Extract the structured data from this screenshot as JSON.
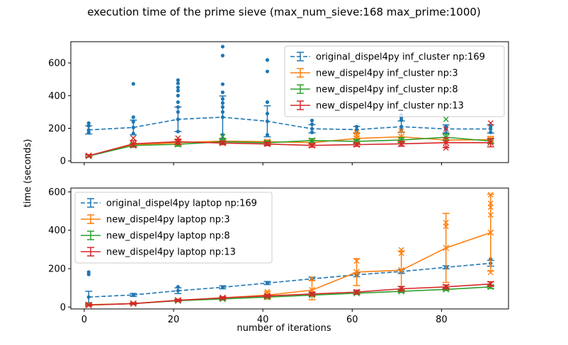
{
  "chart_data": {
    "title": "execution time of the prime sieve (max_num_sieve:168 max_prime:1000)",
    "xlabel": "number of iterations",
    "ylabel": "time (seconds)",
    "xlim": [
      -3,
      95
    ],
    "x_ticks": [
      0,
      20,
      40,
      60,
      80
    ],
    "panels": [
      {
        "type": "line",
        "ylim": [
          -10,
          730
        ],
        "y_ticks": [
          0,
          200,
          400,
          600
        ],
        "legend_placement": "top-right",
        "x": [
          1,
          11,
          21,
          31,
          41,
          51,
          61,
          71,
          81,
          91
        ],
        "series": [
          {
            "name": "original_dispel4py inf_cluster np:169",
            "color": "#1f77b4",
            "dashed": true,
            "marker": "dot",
            "values": [
              190,
              205,
              255,
              268,
              243,
              197,
              192,
              210,
              196,
              196
            ],
            "err": [
              25,
              45,
              75,
              130,
              95,
              25,
              20,
              35,
              25,
              25
            ],
            "outliers": [
              [
                1,
                175
              ],
              [
                1,
                215
              ],
              [
                1,
                232
              ],
              [
                11,
                168
              ],
              [
                11,
                240
              ],
              [
                11,
                268
              ],
              [
                11,
                472
              ],
              [
                21,
                180
              ],
              [
                21,
                300
              ],
              [
                21,
                330
              ],
              [
                21,
                360
              ],
              [
                21,
                400
              ],
              [
                21,
                430
              ],
              [
                21,
                450
              ],
              [
                21,
                475
              ],
              [
                21,
                495
              ],
              [
                31,
                160
              ],
              [
                31,
                300
              ],
              [
                31,
                330
              ],
              [
                31,
                355
              ],
              [
                31,
                380
              ],
              [
                31,
                420
              ],
              [
                31,
                470
              ],
              [
                31,
                645
              ],
              [
                31,
                700
              ],
              [
                41,
                160
              ],
              [
                41,
                290
              ],
              [
                41,
                360
              ],
              [
                41,
                548
              ],
              [
                41,
                618
              ],
              [
                51,
                175
              ],
              [
                51,
                225
              ],
              [
                51,
                248
              ],
              [
                61,
                178
              ],
              [
                61,
                210
              ],
              [
                71,
                190
              ],
              [
                71,
                250
              ],
              [
                71,
                265
              ],
              [
                71,
                282
              ],
              [
                81,
                170
              ],
              [
                81,
                210
              ],
              [
                91,
                175
              ],
              [
                91,
                210
              ]
            ]
          },
          {
            "name": "new_dispel4py inf_cluster np:3",
            "color": "#ff7f0e",
            "dashed": false,
            "marker": "x",
            "values": [
              32,
              98,
              112,
              122,
              118,
              112,
              138,
              148,
              128,
              130
            ],
            "err": [
              6,
              10,
              15,
              12,
              10,
              15,
              30,
              30,
              15,
              20
            ],
            "outliers": [
              [
                61,
                160
              ],
              [
                61,
                175
              ],
              [
                71,
                185
              ]
            ]
          },
          {
            "name": "new_dispel4py inf_cluster np:8",
            "color": "#2ca02c",
            "dashed": false,
            "marker": "x",
            "values": [
              30,
              95,
              102,
              118,
              112,
              125,
              120,
              128,
              145,
              122
            ],
            "err": [
              6,
              10,
              12,
              15,
              10,
              12,
              12,
              15,
              20,
              15
            ],
            "outliers": [
              [
                81,
                255
              ],
              [
                31,
                150
              ]
            ]
          },
          {
            "name": "new_dispel4py inf_cluster np:13",
            "color": "#d62728",
            "dashed": false,
            "marker": "x",
            "values": [
              32,
              105,
              118,
              110,
              104,
              95,
              100,
              105,
              112,
              112
            ],
            "err": [
              6,
              20,
              15,
              10,
              10,
              10,
              10,
              15,
              30,
              25
            ],
            "outliers": [
              [
                11,
                140
              ],
              [
                21,
                140
              ],
              [
                81,
                80
              ],
              [
                91,
                232
              ],
              [
                81,
                195
              ]
            ]
          }
        ]
      },
      {
        "type": "line",
        "ylim": [
          -10,
          620
        ],
        "y_ticks": [
          0,
          200,
          400,
          600
        ],
        "legend_placement": "top-left",
        "x": [
          1,
          11,
          21,
          31,
          41,
          51,
          61,
          71,
          81,
          91
        ],
        "series": [
          {
            "name": "original_dispel4py laptop np:169",
            "color": "#1f77b4",
            "dashed": true,
            "marker": "dot",
            "values": [
              52,
              63,
              85,
              103,
              125,
              147,
              168,
              185,
              207,
              228
            ],
            "err": [
              30,
              8,
              15,
              8,
              8,
              8,
              10,
              10,
              8,
              15
            ],
            "outliers": [
              [
                1,
                170
              ],
              [
                1,
                182
              ],
              [
                1,
                15
              ],
              [
                21,
                105
              ],
              [
                91,
                250
              ]
            ]
          },
          {
            "name": "new_dispel4py laptop np:3",
            "color": "#ff7f0e",
            "dashed": false,
            "marker": "x",
            "values": [
              12,
              18,
              35,
              48,
              62,
              88,
              182,
              192,
              308,
              388
            ],
            "err": [
              5,
              5,
              5,
              5,
              20,
              50,
              70,
              100,
              180,
              200
            ],
            "outliers": [
              [
                71,
                280
              ],
              [
                71,
                298
              ],
              [
                81,
                420
              ],
              [
                81,
                440
              ],
              [
                91,
                480
              ],
              [
                91,
                520
              ],
              [
                91,
                540
              ],
              [
                91,
                585
              ],
              [
                91,
                180
              ],
              [
                61,
                240
              ],
              [
                41,
                80
              ],
              [
                51,
                148
              ]
            ]
          },
          {
            "name": "new_dispel4py laptop np:8",
            "color": "#2ca02c",
            "dashed": false,
            "marker": "x",
            "values": [
              10,
              18,
              33,
              42,
              52,
              62,
              72,
              82,
              92,
              105
            ],
            "err": [
              4,
              4,
              5,
              5,
              5,
              5,
              6,
              6,
              6,
              8
            ],
            "outliers": []
          },
          {
            "name": "new_dispel4py laptop np:13",
            "color": "#d62728",
            "dashed": false,
            "marker": "x",
            "values": [
              10,
              18,
              35,
              48,
              58,
              68,
              78,
              95,
              105,
              120
            ],
            "err": [
              4,
              4,
              5,
              5,
              6,
              8,
              10,
              12,
              10,
              12
            ],
            "outliers": []
          }
        ]
      }
    ]
  }
}
